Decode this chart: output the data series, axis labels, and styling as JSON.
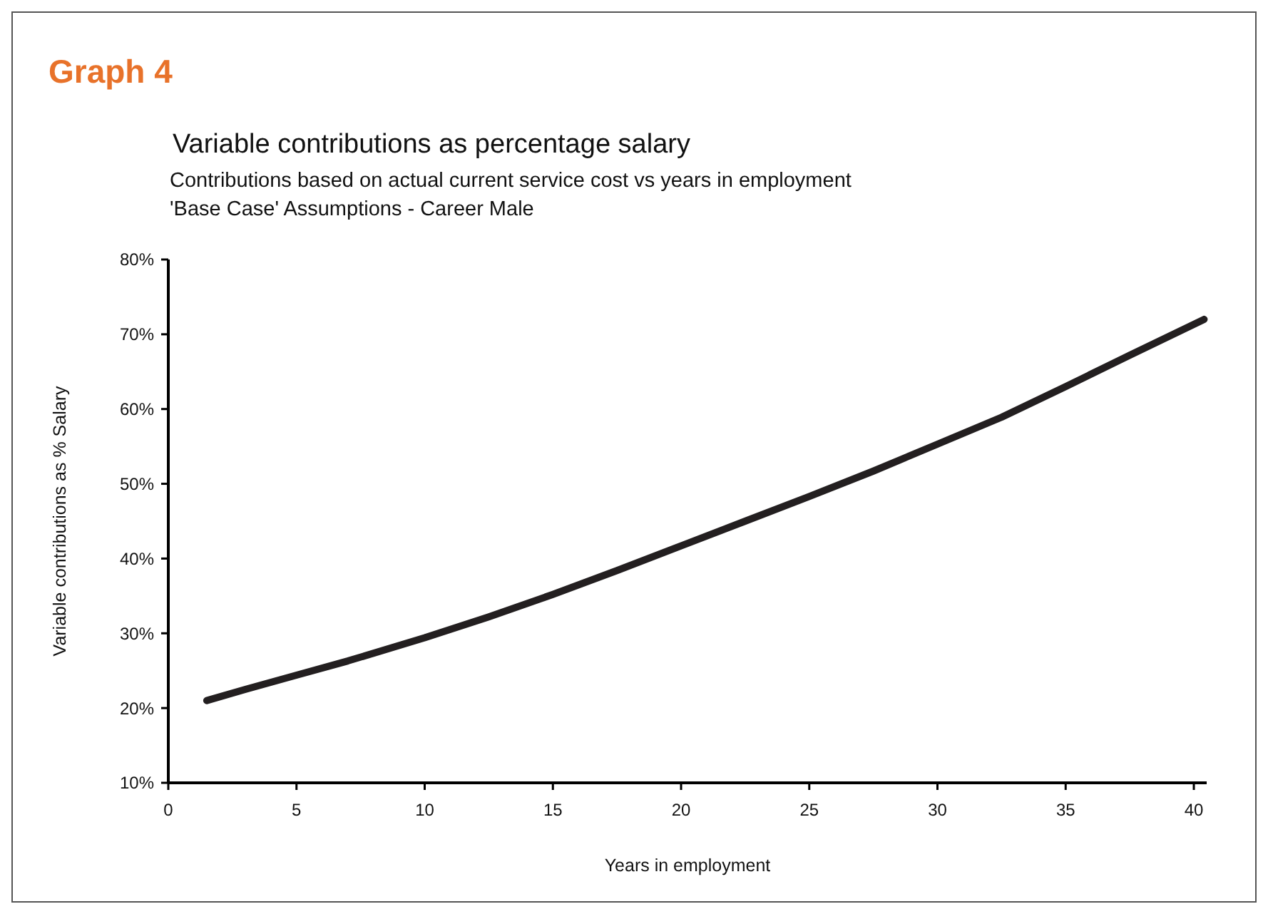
{
  "chart_data": {
    "type": "line",
    "title": "Variable contributions as percentage salary",
    "subtitle": "Contributions based on actual current service cost vs years in employment\n'Base Case' Assumptions - Career Male",
    "annotations": [
      "Graph 4"
    ],
    "xlabel": "Years in employment",
    "ylabel": "Variable contributions as % Salary",
    "x": [
      1.5,
      3,
      5,
      7,
      10,
      12.5,
      15,
      17.5,
      20,
      22.5,
      25,
      27.5,
      30,
      32.5,
      35,
      37.5,
      40.4
    ],
    "series": [
      {
        "color": "#231f20",
        "values": [
          21.0,
          22.5,
          24.4,
          26.3,
          29.4,
          32.2,
          35.2,
          38.4,
          41.7,
          45.0,
          48.3,
          51.7,
          55.3,
          58.9,
          63.0,
          67.2,
          72.0
        ]
      }
    ],
    "xlim": [
      0,
      40.5
    ],
    "xticks": [
      0,
      5,
      10,
      15,
      20,
      25,
      30,
      35,
      40
    ],
    "ylim": [
      10,
      80
    ],
    "yticks": [
      {
        "value": 10,
        "label": "10%"
      },
      {
        "value": 20,
        "label": "20%"
      },
      {
        "value": 30,
        "label": "30%"
      },
      {
        "value": 40,
        "label": "40%"
      },
      {
        "value": 50,
        "label": "50%"
      },
      {
        "value": 60,
        "label": "60%"
      },
      {
        "value": 70,
        "label": "70%"
      },
      {
        "value": 80,
        "label": "80%"
      }
    ],
    "grid": false,
    "marker": "none",
    "line_style": "solid"
  }
}
